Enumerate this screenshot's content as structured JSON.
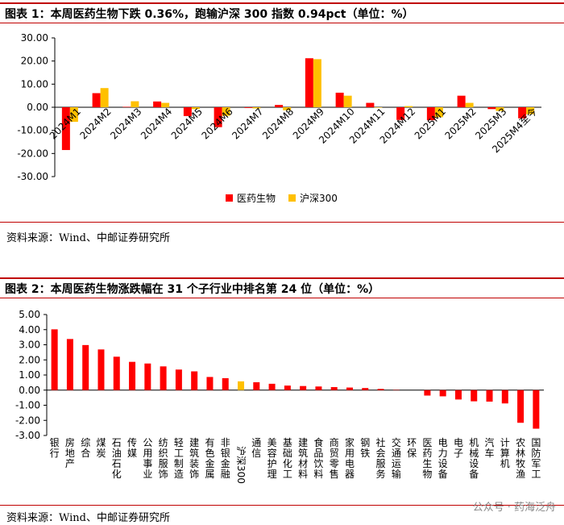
{
  "chart_data": [
    {
      "type": "bar",
      "title": "图表 1：本周医药生物下跌 0.36%，跑输沪深 300 指数 0.94pct（单位：%）",
      "categories": [
        "2024M1",
        "2024M2",
        "2024M3",
        "2024M4",
        "2024M5",
        "2024M6",
        "2024M7",
        "2024M8",
        "2024M9",
        "2024M10",
        "2024M11",
        "2024M12",
        "2025M1",
        "2025M2",
        "2025M3",
        "2025M4至今"
      ],
      "series": [
        {
          "name": "医药生物",
          "color": "#ff0000",
          "values": [
            -18.5,
            6.1,
            0.2,
            2.5,
            -3.8,
            -8.6,
            -0.3,
            1.0,
            21.2,
            6.3,
            1.9,
            -5.5,
            -5.6,
            5.0,
            -0.8,
            -4.8
          ]
        },
        {
          "name": "沪深300",
          "color": "#ffc000",
          "values": [
            -6.3,
            8.3,
            2.6,
            1.9,
            -0.8,
            -3.7,
            -0.5,
            -1.3,
            20.8,
            5.0,
            -0.2,
            0.5,
            -4.3,
            1.9,
            -1.6,
            -3.0
          ]
        }
      ],
      "ylim": [
        -30,
        30
      ],
      "yticks": [
        "30.00",
        "20.00",
        "10.00",
        "0.00",
        "-10.00",
        "-20.00",
        "-30.00"
      ],
      "ytick_values": [
        30,
        20,
        10,
        0,
        -10,
        -20,
        -30
      ],
      "legend": "bottom-center"
    },
    {
      "type": "bar",
      "title": "图表 2：本周医药生物涨跌幅在 31 个子行业中排名第 24 位（单位：%）",
      "categories": [
        "银行",
        "房地产",
        "综合",
        "煤炭",
        "石油石化",
        "传媒",
        "公用事业",
        "纺织服饰",
        "轻工制造",
        "建筑装饰",
        "有色金属",
        "非银金融",
        "沪深300",
        "通信",
        "美容护理",
        "基础化工",
        "建筑材料",
        "食品饮料",
        "商贸零售",
        "家用电器",
        "钢铁",
        "社会服务",
        "交通运输",
        "环保",
        "医药生物",
        "电力设备",
        "电子",
        "机械设备",
        "汽车",
        "计算机",
        "农林牧渔",
        "国防军工"
      ],
      "values": [
        4.02,
        3.38,
        2.98,
        2.69,
        2.21,
        1.87,
        1.76,
        1.57,
        1.36,
        1.24,
        0.87,
        0.79,
        0.58,
        0.52,
        0.42,
        0.3,
        0.27,
        0.24,
        0.2,
        0.17,
        0.14,
        0.08,
        0.02,
        0.0,
        -0.36,
        -0.41,
        -0.62,
        -0.74,
        -0.76,
        -0.88,
        -2.16,
        -2.55
      ],
      "highlight": "沪深300",
      "color": "#ff0000",
      "highlight_color": "#ffc000",
      "ylim": [
        -3,
        5
      ],
      "yticks": [
        "5.00",
        "4.00",
        "3.00",
        "2.00",
        "1.00",
        "0.00",
        "-1.00",
        "-2.00",
        "-3.00"
      ],
      "ytick_values": [
        5,
        4,
        3,
        2,
        1,
        0,
        -1,
        -2,
        -3
      ]
    }
  ],
  "source1": "资料来源：Wind、中邮证券研究所",
  "source2": "资料来源：Wind、中邮证券研究所",
  "watermark": "公众号 · 药海泛舟"
}
